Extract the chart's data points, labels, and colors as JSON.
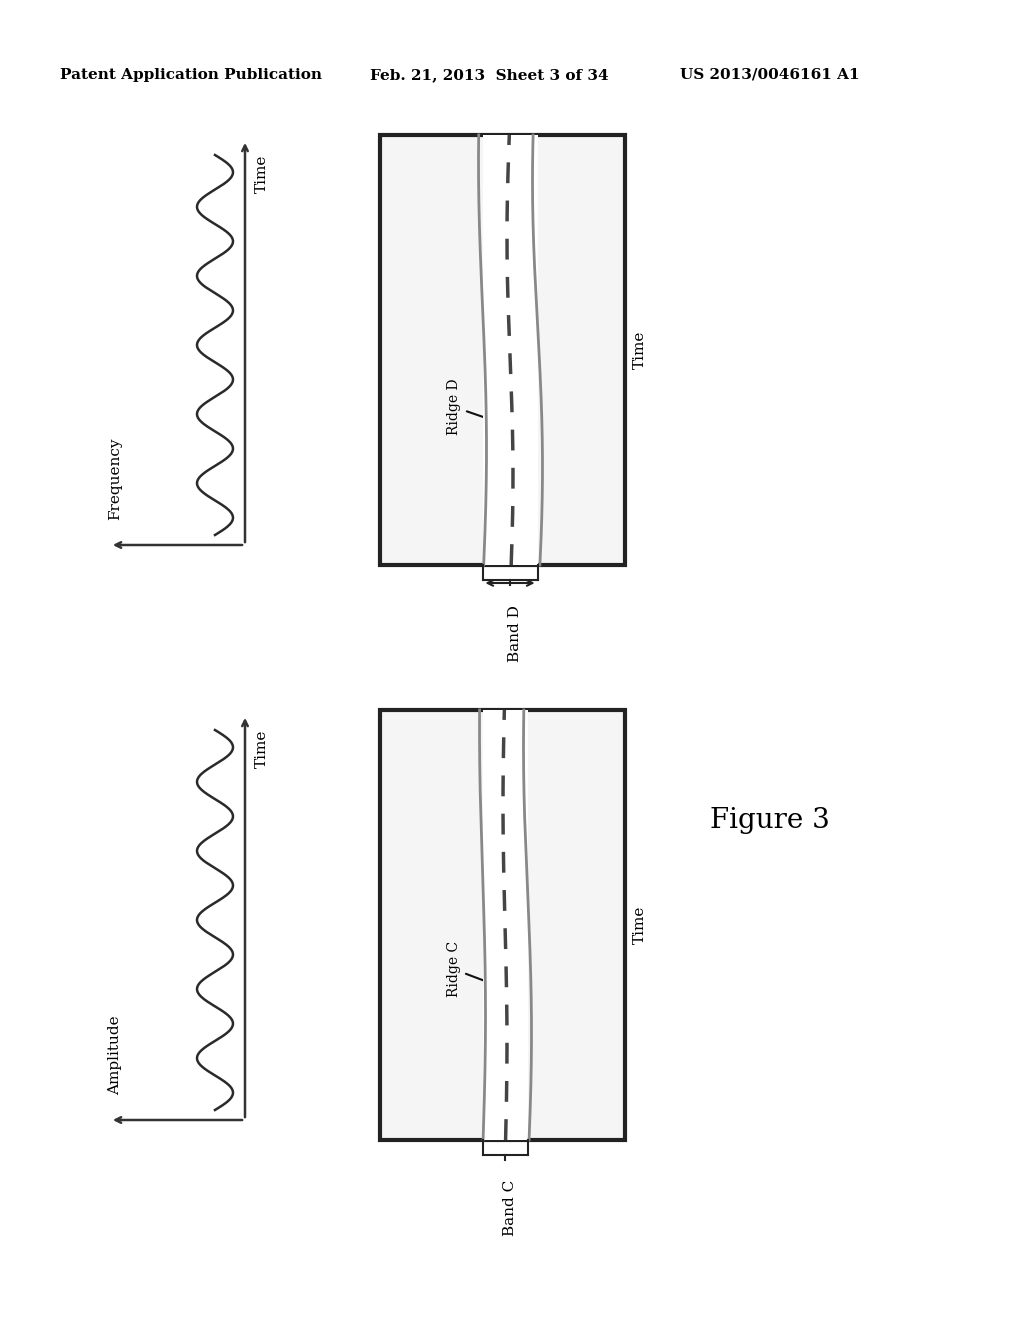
{
  "bg_color": "#ffffff",
  "header_text": "Patent Application Publication",
  "header_date": "Feb. 21, 2013  Sheet 3 of 34",
  "header_patent": "US 2013/0046161 A1",
  "figure_label": "Figure 3",
  "top_left_panel": {
    "wave_label_time": "Time",
    "wave_label_freq": "Frequency"
  },
  "top_right_panel": {
    "band_label": "Band D",
    "ridge_label": "Ridge D",
    "time_label": "Time"
  },
  "bottom_left_panel": {
    "wave_label_time": "Time",
    "wave_label_amp": "Amplitude"
  },
  "bottom_right_panel": {
    "band_label": "Band C",
    "ridge_label": "Ridge C",
    "time_label": "Time"
  }
}
